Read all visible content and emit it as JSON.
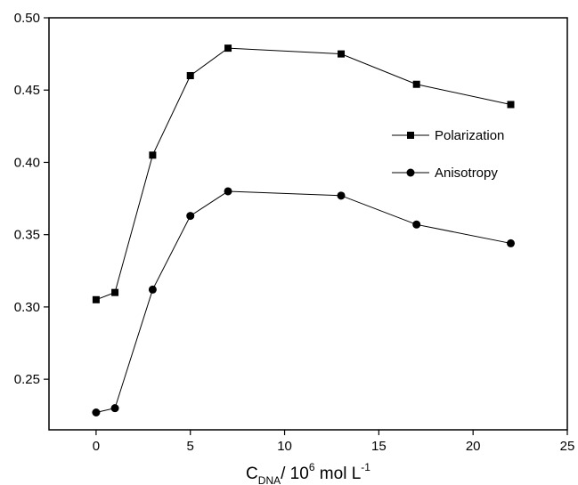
{
  "chart_data": {
    "type": "line",
    "xlabel": {
      "main": "C",
      "sub": "DNA",
      "mid": "/ 10",
      "sup": "6",
      "unit": " mol L",
      "unit_sup": "-1"
    },
    "ylabel": "",
    "xlim": [
      -2.5,
      25
    ],
    "ylim": [
      0.215,
      0.5
    ],
    "xticks": [
      "0",
      "5",
      "10",
      "15",
      "20",
      "25"
    ],
    "yticks": [
      "0.25",
      "0.30",
      "0.35",
      "0.40",
      "0.45",
      "0.50"
    ],
    "grid": false,
    "legend_position": "right",
    "series": [
      {
        "name": "Polarization",
        "marker": "square",
        "color": "#000000",
        "x": [
          0,
          1,
          3,
          5,
          7,
          13,
          17,
          22
        ],
        "y": [
          0.305,
          0.31,
          0.405,
          0.46,
          0.479,
          0.475,
          0.454,
          0.44
        ]
      },
      {
        "name": "Anisotropy",
        "marker": "circle",
        "color": "#000000",
        "x": [
          0,
          1,
          3,
          5,
          7,
          13,
          17,
          22
        ],
        "y": [
          0.227,
          0.23,
          0.312,
          0.363,
          0.38,
          0.377,
          0.357,
          0.344
        ]
      }
    ]
  }
}
